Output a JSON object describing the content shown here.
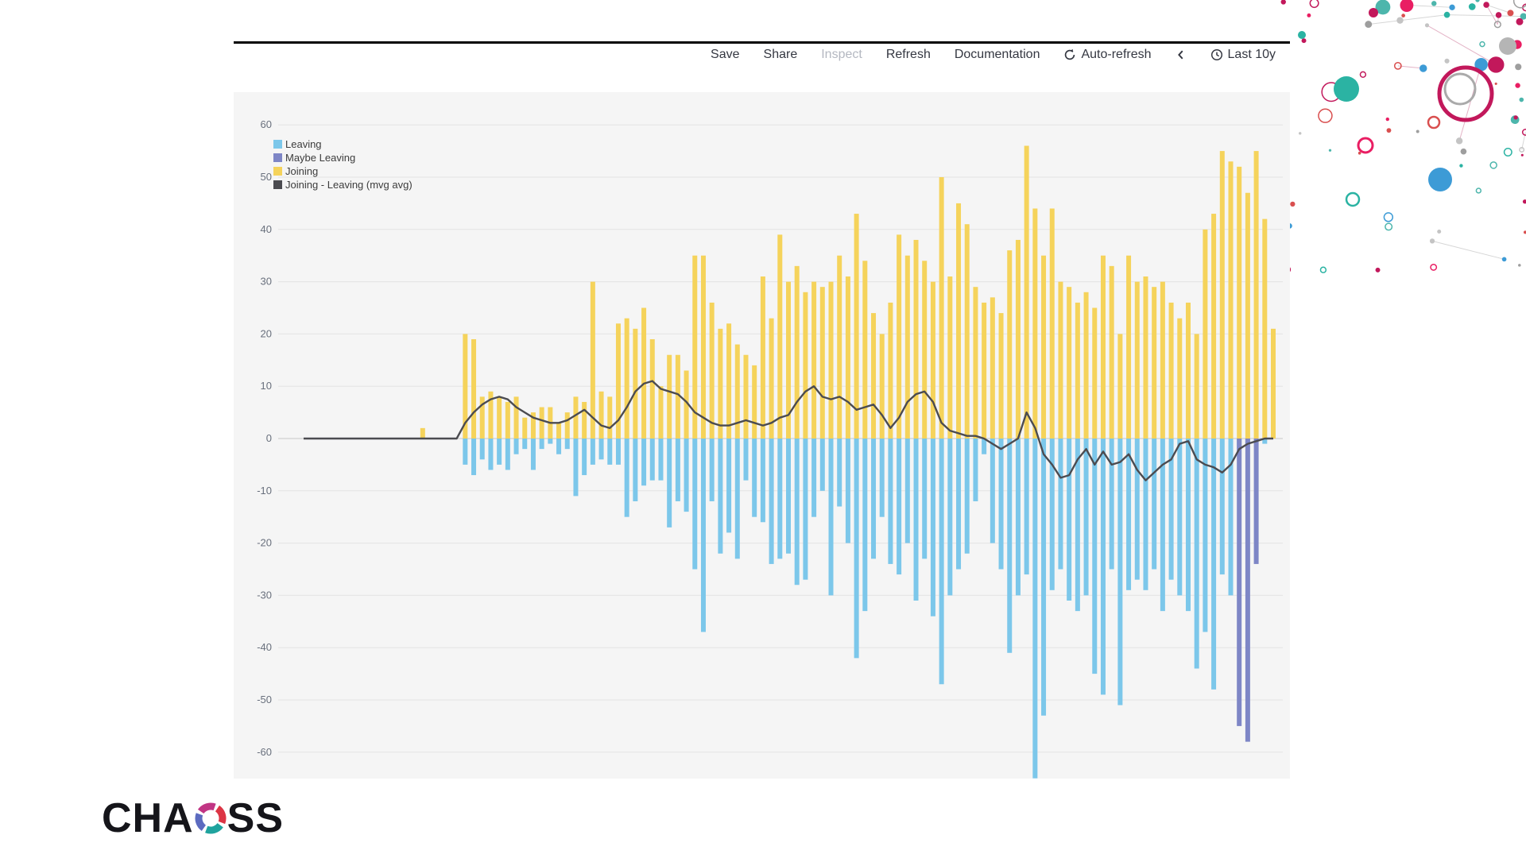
{
  "toolbar": {
    "save": "Save",
    "share": "Share",
    "inspect": "Inspect",
    "inspect_enabled": false,
    "refresh": "Refresh",
    "documentation": "Documentation",
    "auto_refresh": "Auto-refresh",
    "time_range": "Last 10y"
  },
  "brand": {
    "wordmark_left": "CHA",
    "wordmark_right": "SS",
    "ring_colors": [
      "#DC3545",
      "#20A39E",
      "#5C6BC0",
      "#C13584"
    ]
  },
  "chart_data": {
    "type": "bar",
    "title": "",
    "xlabel": "",
    "ylabel": "",
    "ylim": [
      -60,
      60
    ],
    "grid": true,
    "legend_position": "top-left",
    "y_ticks": [
      60,
      50,
      40,
      30,
      20,
      10,
      0,
      -10,
      -20,
      -30,
      -40,
      -50,
      -60
    ],
    "x_note": "monthly buckets, x tick labels not visible in screenshot",
    "series": [
      {
        "name": "Leaving",
        "type": "bar",
        "color": "#7CC7EA",
        "values": [
          0,
          0,
          0,
          0,
          0,
          0,
          0,
          0,
          0,
          0,
          0,
          0,
          0,
          0,
          0,
          0,
          0,
          0,
          0,
          -5,
          -7,
          -4,
          -6,
          -5,
          -6,
          -3,
          -2,
          -6,
          -2,
          -1,
          -3,
          -2,
          -11,
          -7,
          -5,
          -4,
          -5,
          -5,
          -15,
          -12,
          -9,
          -8,
          -8,
          -17,
          -12,
          -14,
          -25,
          -37,
          -12,
          -22,
          -18,
          -23,
          -8,
          -15,
          -16,
          -24,
          -23,
          -22,
          -28,
          -27,
          -15,
          -10,
          -30,
          -13,
          -20,
          -42,
          -33,
          -23,
          -15,
          -24,
          -26,
          -20,
          -31,
          -23,
          -34,
          -47,
          -30,
          -25,
          -22,
          -12,
          -3,
          -20,
          -25,
          -41,
          -30,
          -26,
          -65,
          -53,
          -29,
          -25,
          -31,
          -33,
          -30,
          -45,
          -49,
          -25,
          -51,
          -29,
          -27,
          -29,
          -25,
          -33,
          -27,
          -30,
          -33,
          -44,
          -37,
          -48,
          -26,
          -30,
          -2,
          -1,
          0,
          -1,
          0
        ]
      },
      {
        "name": "Maybe Leaving",
        "type": "bar",
        "color": "#7E86C6",
        "values": [
          0,
          0,
          0,
          0,
          0,
          0,
          0,
          0,
          0,
          0,
          0,
          0,
          0,
          0,
          0,
          0,
          0,
          0,
          0,
          0,
          0,
          0,
          0,
          0,
          0,
          0,
          0,
          0,
          0,
          0,
          0,
          0,
          0,
          0,
          0,
          0,
          0,
          0,
          0,
          0,
          0,
          0,
          0,
          0,
          0,
          0,
          0,
          0,
          0,
          0,
          0,
          0,
          0,
          0,
          0,
          0,
          0,
          0,
          0,
          0,
          0,
          0,
          0,
          0,
          0,
          0,
          0,
          0,
          0,
          0,
          0,
          0,
          0,
          0,
          0,
          0,
          0,
          0,
          0,
          0,
          0,
          0,
          0,
          0,
          0,
          0,
          0,
          0,
          0,
          0,
          0,
          0,
          0,
          0,
          0,
          0,
          0,
          0,
          0,
          0,
          0,
          0,
          0,
          0,
          0,
          0,
          0,
          0,
          0,
          0,
          -55,
          -58,
          -24,
          0,
          0
        ]
      },
      {
        "name": "Joining",
        "type": "bar",
        "color": "#F5D35B",
        "values": [
          0,
          0,
          0,
          0,
          0,
          0,
          0,
          0,
          0,
          0,
          0,
          0,
          0,
          0,
          2,
          0,
          0,
          0,
          0,
          20,
          19,
          8,
          9,
          8,
          7,
          8,
          4,
          5,
          6,
          6,
          3,
          5,
          8,
          7,
          30,
          9,
          8,
          22,
          23,
          21,
          25,
          19,
          10,
          16,
          16,
          13,
          35,
          35,
          26,
          21,
          22,
          18,
          16,
          14,
          31,
          23,
          39,
          30,
          33,
          28,
          30,
          29,
          30,
          35,
          31,
          43,
          34,
          24,
          20,
          26,
          39,
          35,
          38,
          34,
          30,
          50,
          31,
          45,
          41,
          29,
          26,
          27,
          24,
          36,
          38,
          56,
          44,
          35,
          44,
          30,
          29,
          26,
          28,
          25,
          35,
          33,
          20,
          35,
          30,
          31,
          29,
          30,
          26,
          23,
          26,
          20,
          40,
          43,
          55,
          53,
          52,
          47,
          55,
          42,
          21
        ]
      },
      {
        "name": "Joining - Leaving (mvg avg)",
        "type": "line",
        "color": "#4B4B50",
        "values": [
          0,
          0,
          0,
          0,
          0,
          0,
          0,
          0,
          0,
          0,
          0,
          0,
          0,
          0,
          0,
          0,
          0,
          0,
          0,
          3,
          5,
          6.5,
          7.5,
          8,
          7.5,
          6,
          5,
          4,
          3.5,
          3,
          3,
          3.5,
          4.5,
          5.5,
          4,
          2.5,
          2,
          3.5,
          6,
          9,
          10.5,
          11,
          9.5,
          9,
          8.5,
          7,
          5,
          4,
          3,
          2.5,
          2.5,
          3,
          3.5,
          3,
          2.5,
          3,
          4,
          4.5,
          7,
          9,
          10,
          8,
          7.5,
          8,
          7,
          5.5,
          6,
          6.5,
          4.5,
          2,
          4,
          7,
          8.5,
          9,
          7,
          3,
          1.5,
          1,
          0.5,
          0.5,
          0,
          -1,
          -2,
          -1,
          0,
          5,
          2,
          -3,
          -5,
          -7.5,
          -7,
          -4,
          -2,
          -5,
          -2.5,
          -5,
          -4.5,
          -3,
          -6,
          -8,
          -6.5,
          -5,
          -4,
          -1,
          -0.5,
          -4,
          -5,
          -5.5,
          -6.5,
          -5,
          -2,
          -1,
          -0.5,
          0,
          0
        ]
      }
    ]
  }
}
